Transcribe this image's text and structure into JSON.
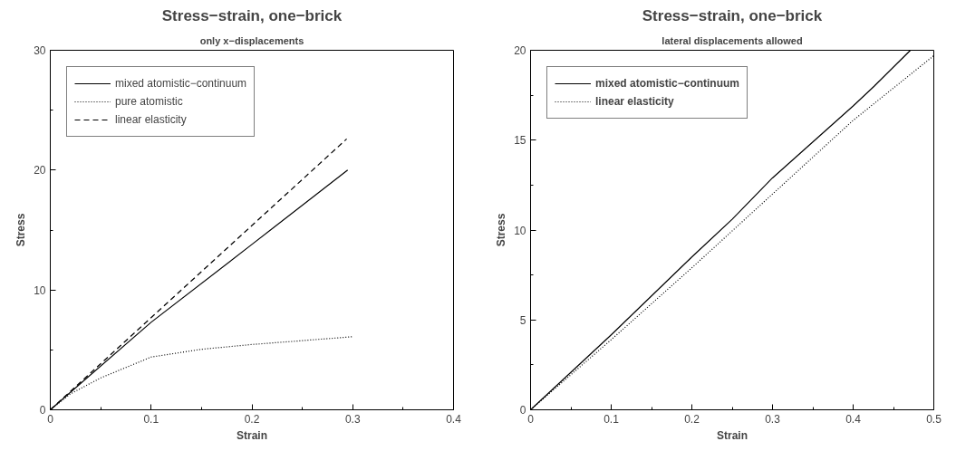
{
  "chart_data": [
    {
      "type": "line",
      "title": "Stress−strain, one−brick",
      "subtitle": "only x−displacements",
      "xlabel": "Strain",
      "ylabel": "Stress",
      "xlim": [
        0,
        0.4
      ],
      "ylim": [
        0,
        30
      ],
      "xticks": [
        0,
        0.1,
        0.2,
        0.3,
        0.4
      ],
      "yticks": [
        0,
        10,
        20,
        30
      ],
      "grid": false,
      "legend": "top left",
      "marker": "none",
      "series": [
        {
          "name": "mixed atomistic−continuum",
          "color": "#000000",
          "line_style": "solid",
          "x": [
            0,
            0.1,
            0.2,
            0.295
          ],
          "values": [
            0,
            7.3,
            13.8,
            20.0
          ]
        },
        {
          "name": "pure atomistic",
          "color": "#000000",
          "line_style": "dotted",
          "x": [
            0,
            0.02,
            0.05,
            0.1,
            0.15,
            0.2,
            0.25,
            0.3
          ],
          "values": [
            0,
            1.33,
            2.66,
            4.4,
            5.05,
            5.45,
            5.77,
            6.1
          ]
        },
        {
          "name": "linear elasticity",
          "color": "#000000",
          "line_style": "dashed",
          "x": [
            0,
            0.294
          ],
          "values": [
            0,
            22.6
          ]
        }
      ]
    },
    {
      "type": "line",
      "title": "Stress−strain, one−brick",
      "subtitle": "lateral displacements allowed",
      "xlabel": "Strain",
      "ylabel": "Stress",
      "xlim": [
        0,
        0.5
      ],
      "ylim": [
        0,
        20
      ],
      "xticks": [
        0,
        0.1,
        0.2,
        0.3,
        0.4,
        0.5
      ],
      "yticks": [
        0,
        5,
        10,
        15,
        20
      ],
      "grid": false,
      "legend": "top left",
      "marker": "none",
      "series": [
        {
          "name": "mixed atomistic−continuum",
          "color": "#000000",
          "line_style": "solid",
          "x": [
            0,
            0.1,
            0.2,
            0.25,
            0.3,
            0.4,
            0.426,
            0.471
          ],
          "values": [
            0,
            4.17,
            8.5,
            10.6,
            12.9,
            16.9,
            18.0,
            20.0
          ]
        },
        {
          "name": "linear elasticity",
          "color": "#000000",
          "line_style": "dotted",
          "x": [
            0,
            0.1,
            0.2,
            0.3,
            0.4,
            0.5
          ],
          "values": [
            0,
            3.9,
            7.9,
            12.0,
            16.1,
            19.7
          ]
        }
      ]
    }
  ]
}
